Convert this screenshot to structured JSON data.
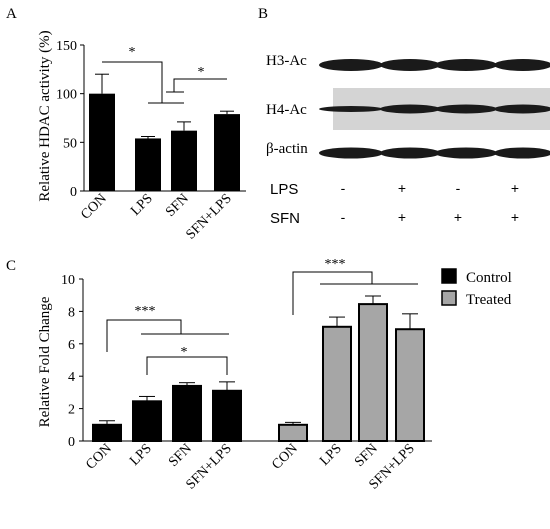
{
  "panels": {
    "a": "A",
    "b": "B",
    "c": "C"
  },
  "colors": {
    "control": "#000000",
    "treated": "#a6a6a6",
    "blot_band": "#1a1a1a",
    "blot_bg": "#ffffff",
    "blot_bg_h4": "#d4d4d4"
  },
  "chart_data": [
    {
      "id": "A",
      "type": "bar",
      "ylabel": "Relative HDAC activity (%)",
      "ylim": [
        0,
        150
      ],
      "yticks": [
        0,
        50,
        100,
        150
      ],
      "categories": [
        "CON",
        "LPS",
        "SFN",
        "SFN+LPS"
      ],
      "values": [
        100,
        54,
        62,
        79
      ],
      "errors": [
        20,
        2,
        9,
        3
      ],
      "significance": [
        {
          "label": "*",
          "from": "CON",
          "to": [
            "LPS",
            "SFN"
          ]
        },
        {
          "label": "*",
          "from": "SFN+LPS",
          "to": [
            "LPS",
            "SFN"
          ]
        }
      ]
    },
    {
      "id": "C",
      "type": "bar",
      "ylabel": "Relative Fold Change",
      "ylim": [
        0,
        10
      ],
      "yticks": [
        0,
        2,
        4,
        6,
        8,
        10
      ],
      "categories": [
        "CON",
        "LPS",
        "SFN",
        "SFN+LPS"
      ],
      "legend_position": "top-right",
      "series": [
        {
          "name": "Control",
          "color": "#000000",
          "values": [
            1.0,
            2.45,
            3.4,
            3.1
          ],
          "errors": [
            0.25,
            0.3,
            0.2,
            0.55
          ]
        },
        {
          "name": "Treated",
          "color": "#a6a6a6",
          "values": [
            1.0,
            7.05,
            8.45,
            6.9
          ],
          "errors": [
            0.15,
            0.6,
            0.5,
            0.95
          ]
        }
      ],
      "significance": [
        {
          "label": "***",
          "series": "Control",
          "from": "CON",
          "to": [
            "LPS",
            "SFN",
            "SFN+LPS"
          ]
        },
        {
          "label": "*",
          "series": "Control",
          "from": "LPS",
          "to": [
            "SFN",
            "SFN+LPS"
          ]
        },
        {
          "label": "***",
          "series": "Treated",
          "from": "CON",
          "to": [
            "LPS",
            "SFN",
            "SFN+LPS"
          ]
        }
      ]
    }
  ],
  "western_blot": {
    "rows": [
      "H3-Ac",
      "H4-Ac",
      "β-actin"
    ],
    "treatments": [
      {
        "name": "LPS",
        "marks": [
          "-",
          "+",
          "-",
          "+"
        ]
      },
      {
        "name": "SFN",
        "marks": [
          "-",
          "+",
          "+",
          "+"
        ]
      }
    ]
  }
}
